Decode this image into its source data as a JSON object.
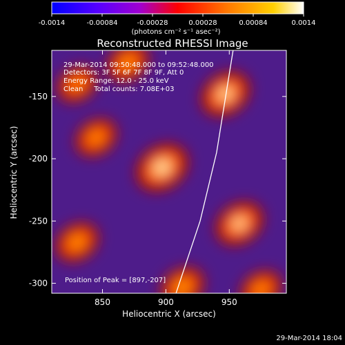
{
  "colorbar": {
    "ticks": [
      "-0.0014",
      "-0.00084",
      "-0.00028",
      "0.00028",
      "0.00084",
      "0.0014"
    ],
    "tick_values": [
      -0.0014,
      -0.00084,
      -0.00028,
      0.00028,
      0.00084,
      0.0014
    ],
    "range": [
      -0.0014,
      0.0014
    ],
    "unit_label": "(photons cm⁻² s⁻¹ asec⁻²)",
    "colors_neg": [
      "#0000ff",
      "#7a00e0",
      "#c000c0"
    ],
    "colors_pos": [
      "#ff2000",
      "#ff7a00",
      "#ffd000",
      "#ffffff"
    ]
  },
  "chart_data": {
    "type": "heatmap",
    "title": "Reconstructed RHESSI Image",
    "xlabel": "Heliocentric X (arcsec)",
    "ylabel": "Heliocentric Y (arcsec)",
    "xlim": [
      810,
      995
    ],
    "ylim": [
      -308,
      -113
    ],
    "x_ticks": [
      850,
      900,
      950
    ],
    "y_ticks": [
      -150,
      -200,
      -250,
      -300
    ],
    "info_lines": [
      "29-Mar-2014 09:50:48.000 to 09:52:48.000",
      "Detectors: 3F 5F 6F 7F 8F 9F, Att 0",
      "Energy Range: 12.0 - 25.0 keV",
      "Clean     Total counts: 7.08E+03"
    ],
    "peak_text": "Position of Peak = [897,-207]",
    "peak": [
      897,
      -207
    ],
    "sources": [
      {
        "x": 897,
        "y": -207,
        "value": 0.0014
      },
      {
        "x": 947,
        "y": -148,
        "value": 0.0012
      },
      {
        "x": 958,
        "y": -252,
        "value": 0.0011
      },
      {
        "x": 913,
        "y": -303,
        "value": 0.00085
      },
      {
        "x": 845,
        "y": -183,
        "value": 0.0007
      },
      {
        "x": 830,
        "y": -267,
        "value": 0.0008
      },
      {
        "x": 870,
        "y": -123,
        "value": 0.00075
      },
      {
        "x": 830,
        "y": -140,
        "value": 0.0006
      },
      {
        "x": 975,
        "y": -305,
        "value": 0.0007
      }
    ],
    "limb_curve": [
      [
        908,
        -308
      ],
      [
        927,
        -250
      ],
      [
        940,
        -195
      ],
      [
        953,
        -113
      ]
    ],
    "timestamp": "29-Mar-2014 18:04"
  }
}
